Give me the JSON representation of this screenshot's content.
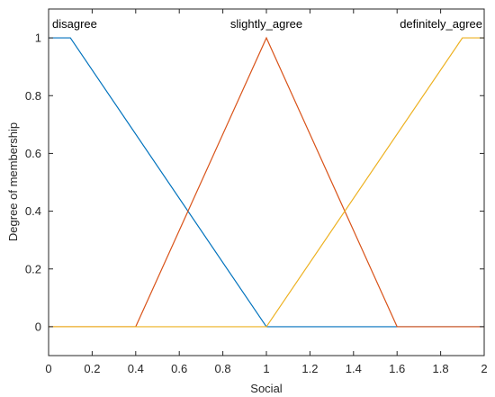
{
  "chart_data": {
    "type": "line",
    "title": "",
    "xlabel": "Social",
    "ylabel": "Degree of membership",
    "xlim": [
      0,
      2
    ],
    "ylim": [
      -0.1,
      1.1
    ],
    "grid": false,
    "legend": "none",
    "x_ticks": [
      "0",
      "0.2",
      "0.4",
      "0.6",
      "0.8",
      "1",
      "1.2",
      "1.4",
      "1.6",
      "1.8",
      "2"
    ],
    "y_ticks": [
      "0",
      "0.2",
      "0.4",
      "0.6",
      "0.8",
      "1"
    ],
    "series": [
      {
        "name": "disagree",
        "color": "#0072BD",
        "x": [
          0,
          0.1,
          1,
          2
        ],
        "y": [
          1,
          1,
          0,
          0
        ]
      },
      {
        "name": "slightly_agree",
        "color": "#D95319",
        "x": [
          0,
          0.4,
          1,
          1.6,
          2
        ],
        "y": [
          0,
          0,
          1,
          0,
          0
        ]
      },
      {
        "name": "definitely_agree",
        "color": "#EDB120",
        "x": [
          0,
          1,
          1.9,
          2
        ],
        "y": [
          0,
          0,
          1,
          1
        ]
      }
    ]
  }
}
